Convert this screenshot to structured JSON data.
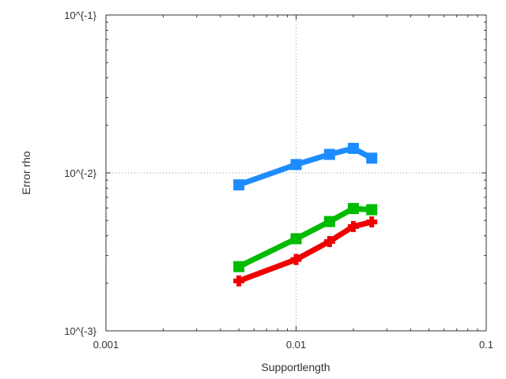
{
  "chart_data": {
    "type": "line",
    "xlabel": "Supportlength",
    "ylabel": "Error rho",
    "xscale": "log",
    "yscale": "log",
    "xlim": [
      0.001,
      0.1
    ],
    "ylim": [
      0.001,
      0.1
    ],
    "xticks": [
      {
        "value": 0.001,
        "label": "0.001"
      },
      {
        "value": 0.01,
        "label": "0.01"
      },
      {
        "value": 0.1,
        "label": "0.1"
      }
    ],
    "yticks": [
      {
        "value": 0.001,
        "label": "10^{-3}"
      },
      {
        "value": 0.01,
        "label": "10^{-2}"
      },
      {
        "value": 0.1,
        "label": "10^{-1}"
      }
    ],
    "grid": "dotted, major ticks",
    "legend": "none",
    "series": [
      {
        "color": "#1e8cff",
        "marker": "square",
        "x": [
          0.005,
          0.01,
          0.015,
          0.02,
          0.025
        ],
        "y": [
          0.0084,
          0.0113,
          0.0131,
          0.0143,
          0.0124
        ]
      },
      {
        "color": "#00bb00",
        "marker": "square",
        "x": [
          0.005,
          0.01,
          0.015,
          0.02,
          0.025
        ],
        "y": [
          0.00255,
          0.00383,
          0.00492,
          0.00595,
          0.00585
        ]
      },
      {
        "color": "#ee0000",
        "marker": "cross",
        "x": [
          0.005,
          0.01,
          0.015,
          0.02,
          0.025
        ],
        "y": [
          0.00207,
          0.00283,
          0.00368,
          0.00458,
          0.00489
        ]
      }
    ]
  }
}
